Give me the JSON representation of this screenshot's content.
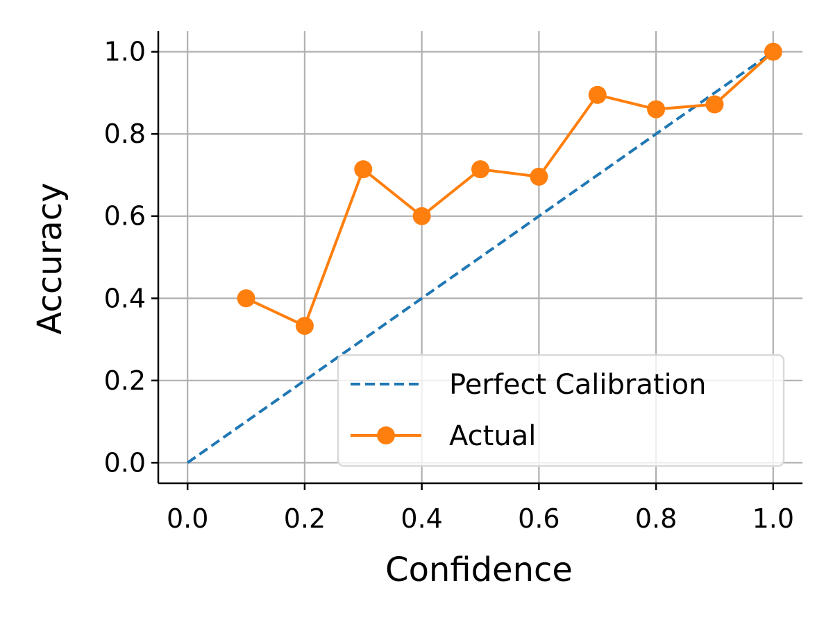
{
  "chart_data": {
    "type": "line",
    "xlabel": "Confidence",
    "ylabel": "Accuracy",
    "xlim": [
      -0.05,
      1.05
    ],
    "ylim": [
      -0.05,
      1.05
    ],
    "xticks": [
      0.0,
      0.2,
      0.4,
      0.6,
      0.8,
      1.0
    ],
    "yticks": [
      0.0,
      0.2,
      0.4,
      0.6,
      0.8,
      1.0
    ],
    "xtick_labels": [
      "0.0",
      "0.2",
      "0.4",
      "0.6",
      "0.8",
      "1.0"
    ],
    "ytick_labels": [
      "0.0",
      "0.2",
      "0.4",
      "0.6",
      "0.8",
      "1.0"
    ],
    "grid": true,
    "legend_position": "bottom-right",
    "series": [
      {
        "name": "Perfect Calibration",
        "style": "dashed",
        "marker": "none",
        "color": "#1f77b4",
        "x": [
          0.0,
          1.0
        ],
        "y": [
          0.0,
          1.0
        ]
      },
      {
        "name": "Actual",
        "style": "solid",
        "marker": "circle",
        "color": "#ff7f0e",
        "x": [
          0.1,
          0.2,
          0.3,
          0.4,
          0.5,
          0.6,
          0.7,
          0.8,
          0.9,
          1.0
        ],
        "y": [
          0.4,
          0.333,
          0.714,
          0.6,
          0.714,
          0.696,
          0.895,
          0.86,
          0.872,
          1.0
        ]
      }
    ]
  }
}
